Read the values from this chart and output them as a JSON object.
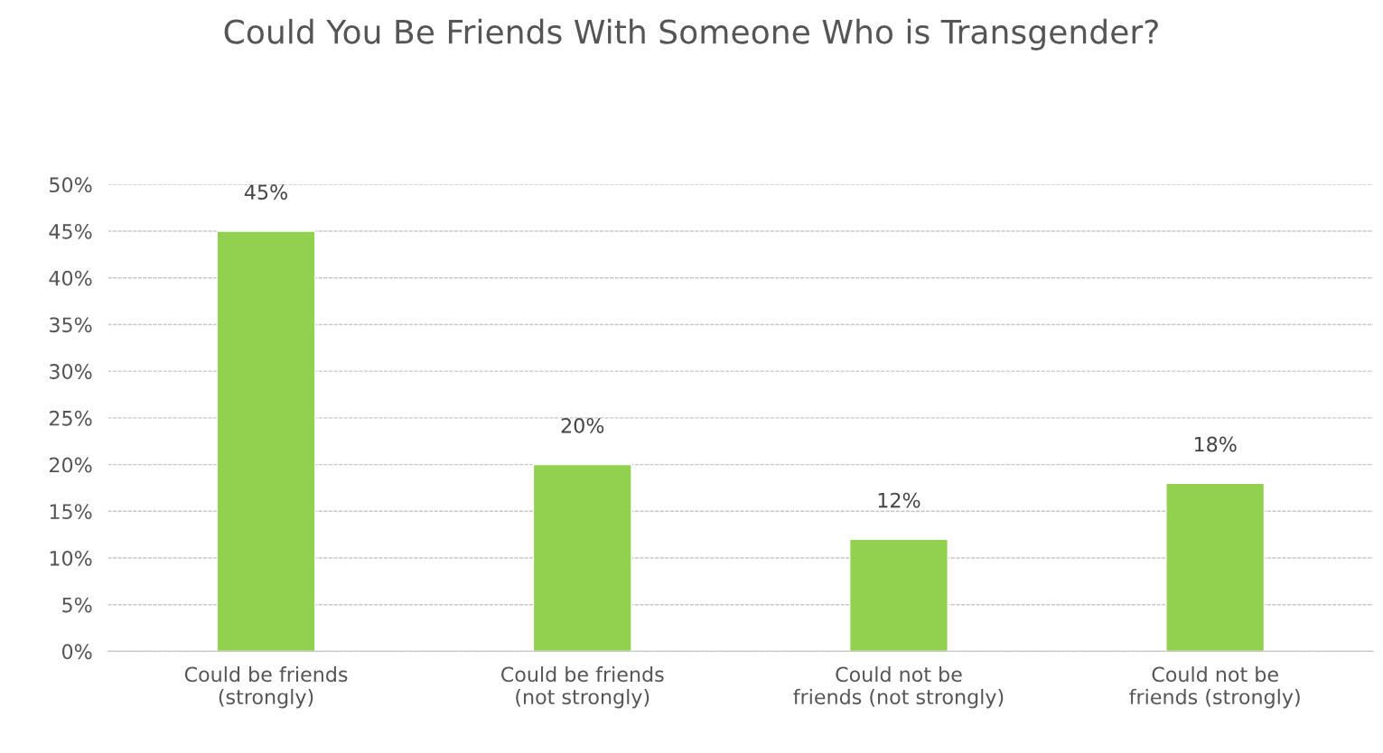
{
  "chart_data": {
    "type": "bar",
    "title": "Could You Be Friends With Someone Who is Transgender?",
    "categories": [
      "Could be friends (strongly)",
      "Could be friends (not strongly)",
      "Could not be friends (not strongly)",
      "Could not be friends (strongly)"
    ],
    "values": [
      45,
      20,
      12,
      18
    ],
    "value_labels": [
      "45%",
      "20%",
      "12%",
      "18%"
    ],
    "color": "#92d050",
    "ylim": [
      0,
      50
    ],
    "yticks": [
      {
        "value": 0,
        "label": "0%"
      },
      {
        "value": 5,
        "label": "5%"
      },
      {
        "value": 10,
        "label": "10%"
      },
      {
        "value": 15,
        "label": "15%"
      },
      {
        "value": 20,
        "label": "20%"
      },
      {
        "value": 25,
        "label": "25%"
      },
      {
        "value": 30,
        "label": "30%"
      },
      {
        "value": 35,
        "label": "35%"
      },
      {
        "value": 40,
        "label": "40%"
      },
      {
        "value": 45,
        "label": "45%"
      },
      {
        "value": 50,
        "label": "50%"
      }
    ],
    "grid": "y"
  }
}
